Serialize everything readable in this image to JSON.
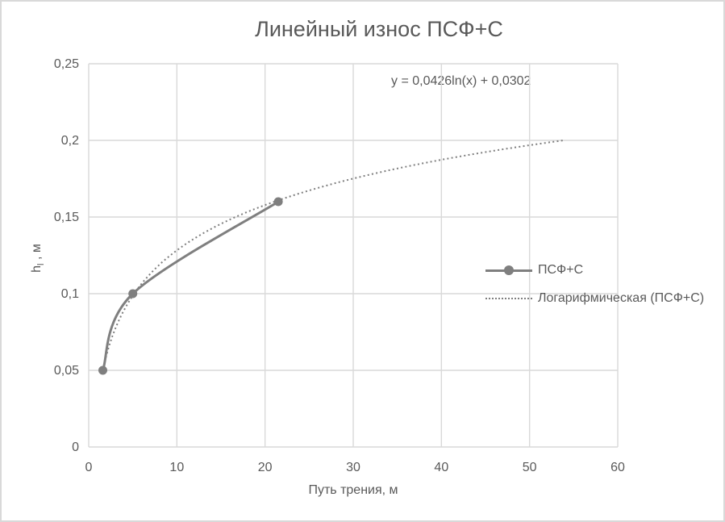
{
  "chart": {
    "title": "Линейный износ ПСФ+С",
    "equation": "y = 0,0426ln(x) + 0,0302",
    "xlabel": "Путь трения, м",
    "ylabel_main": "h",
    "ylabel_sub": "l",
    "ylabel_unit": " , м",
    "legend": [
      {
        "label": "ПСФ+С"
      },
      {
        "label": "Логарифмическая (ПСФ+С)"
      }
    ]
  },
  "chart_data": {
    "type": "line",
    "title": "Линейный износ ПСФ+С",
    "xlabel": "Путь трения, м",
    "ylabel": "hl, м",
    "xlim": [
      0,
      60
    ],
    "ylim": [
      0,
      0.25
    ],
    "grid": true,
    "legend_position": "right-middle",
    "x_ticks": [
      0,
      10,
      20,
      30,
      40,
      50,
      60
    ],
    "x_tick_labels": [
      "0",
      "10",
      "20",
      "30",
      "40",
      "50",
      "60"
    ],
    "y_ticks": [
      0,
      0.05,
      0.1,
      0.15,
      0.2,
      0.25
    ],
    "y_tick_labels": [
      "0",
      "0,05",
      "0,1",
      "0,15",
      "0,2",
      "0,25"
    ],
    "series": [
      {
        "name": "ПСФ+С",
        "x": [
          1.6,
          5,
          21.5
        ],
        "y": [
          0.05,
          0.1,
          0.16
        ],
        "style": "solid-smooth",
        "markers": "circle",
        "color": "#7f7f7f"
      },
      {
        "name": "Логарифмическая (ПСФ+С)",
        "trendline": "logarithmic",
        "equation": "y = 0,0426ln(x) + 0,0302",
        "a": 0.0426,
        "b": 0.0302,
        "x_start": 1.5,
        "x_end": 54,
        "style": "dotted",
        "color": "#7f7f7f"
      }
    ],
    "colors": {
      "text": "#595959",
      "grid": "#d9d9d9",
      "series": "#7f7f7f"
    }
  }
}
